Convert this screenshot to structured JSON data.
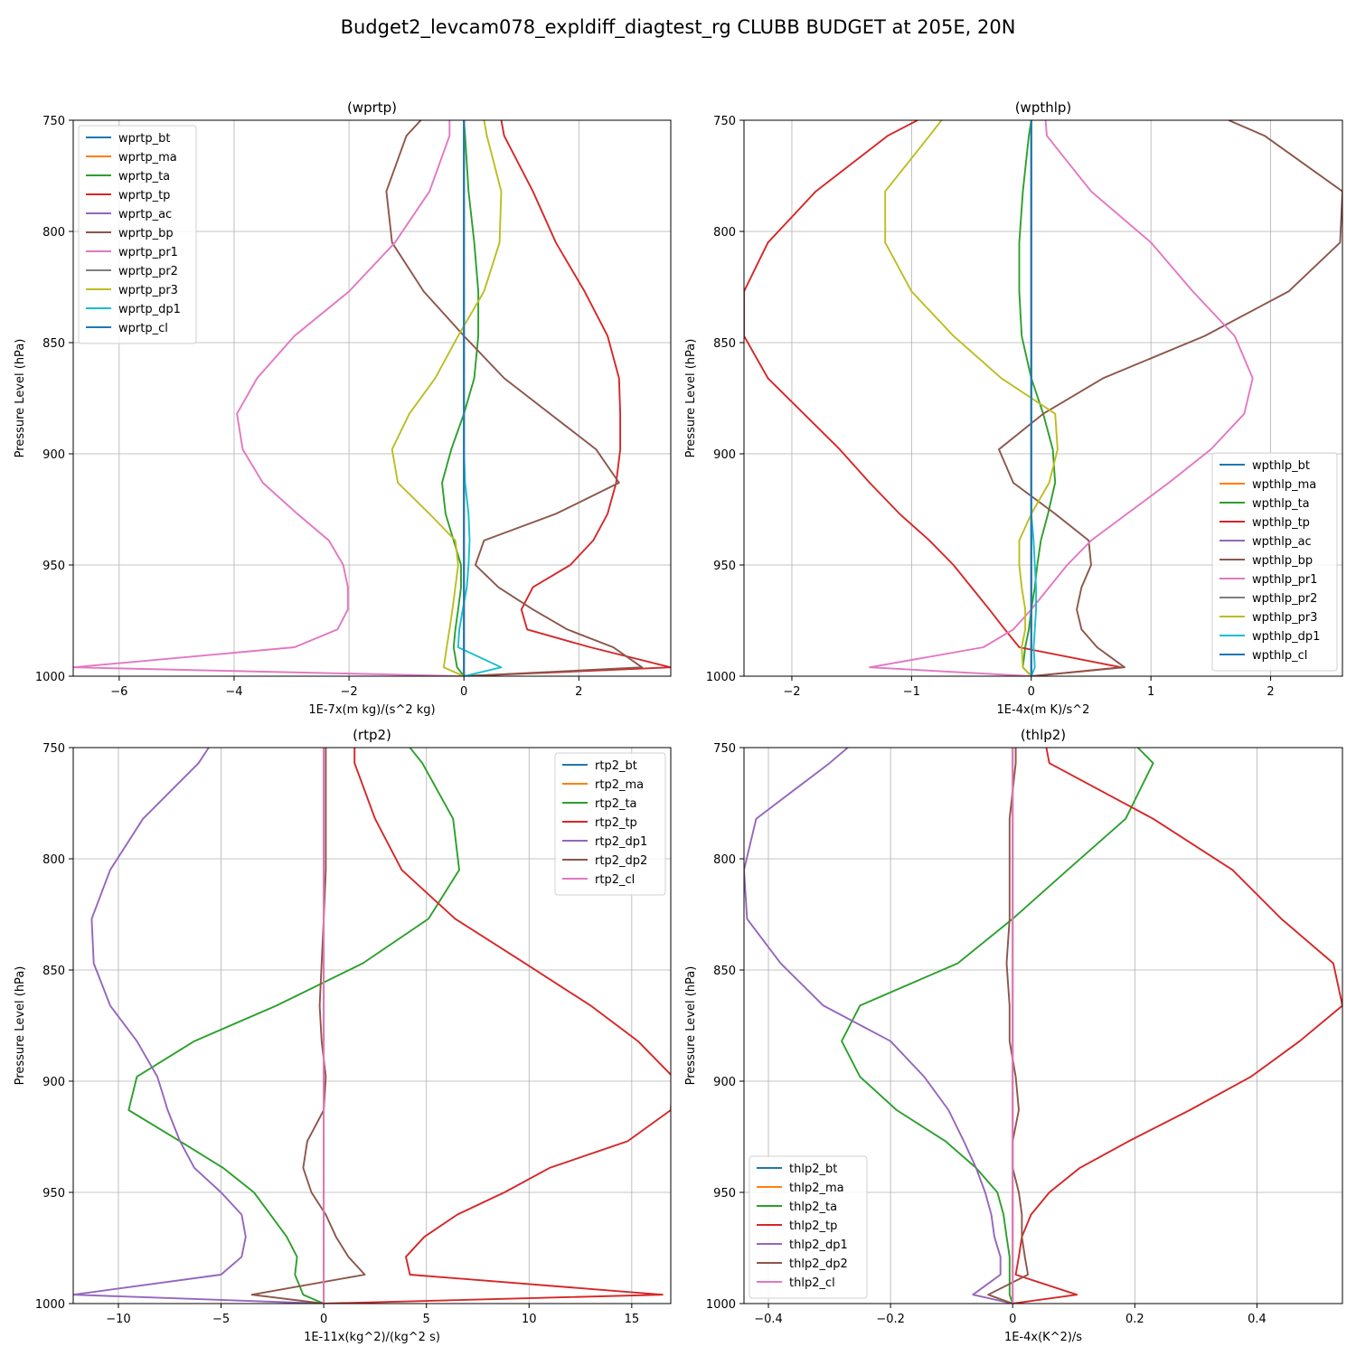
{
  "figure": {
    "suptitle": "Budget2_levcam078_expldiff_diagtest_rg CLUBB BUDGET at 205E, 20N"
  },
  "chart_data": [
    {
      "type": "line",
      "title": "(wprtp)",
      "xlabel": "1E-7x(m kg)/(s^2 kg)",
      "ylabel": "Pressure Level (hPa)",
      "xlim": [
        -6.8,
        3.6
      ],
      "ylim": [
        1000,
        750
      ],
      "xticks": [
        -6,
        -4,
        -2,
        0,
        2
      ],
      "yticks": [
        750,
        800,
        850,
        900,
        950,
        1000
      ],
      "legend_position": "top-left",
      "grid": true,
      "levels": [
        750,
        757,
        782,
        805,
        827,
        847,
        866,
        882,
        898,
        913,
        927,
        939,
        950,
        960,
        970,
        979,
        987,
        996,
        1000
      ],
      "series": [
        {
          "name": "wprtp_bt",
          "color": "#1f77b4",
          "values": [
            0,
            0,
            0,
            0,
            0,
            0,
            0,
            0,
            0,
            0,
            0,
            0,
            0,
            0,
            0,
            0,
            0,
            0,
            0
          ]
        },
        {
          "name": "wprtp_ma",
          "color": "#ff7f0e",
          "values": [
            0,
            0,
            0,
            0,
            0,
            0,
            0,
            0,
            0,
            0,
            0,
            0,
            0,
            0,
            0,
            0,
            0,
            0,
            0
          ]
        },
        {
          "name": "wprtp_ta",
          "color": "#2ca02c",
          "values": [
            0,
            0.02,
            0.08,
            0.18,
            0.25,
            0.25,
            0.18,
            0,
            -0.22,
            -0.38,
            -0.32,
            -0.18,
            -0.05,
            -0.05,
            -0.1,
            -0.15,
            -0.18,
            -0.12,
            0
          ]
        },
        {
          "name": "wprtp_tp",
          "color": "#d62728",
          "values": [
            0.65,
            0.7,
            1.2,
            1.6,
            2.1,
            2.5,
            2.7,
            2.72,
            2.72,
            2.65,
            2.5,
            2.25,
            1.85,
            1.2,
            1.0,
            1.1,
            2.2,
            3.6,
            0
          ]
        },
        {
          "name": "wprtp_ac",
          "color": "#9467bd",
          "values": [
            0,
            0,
            0,
            0,
            0,
            0,
            0,
            0,
            0,
            0,
            0,
            0,
            0,
            0,
            0,
            0,
            0,
            0,
            0
          ]
        },
        {
          "name": "wprtp_bp",
          "color": "#8c564b",
          "values": [
            -0.75,
            -1.0,
            -1.35,
            -1.25,
            -0.7,
            0,
            0.7,
            1.5,
            2.3,
            2.7,
            1.6,
            0.35,
            0.2,
            0.6,
            1.2,
            1.8,
            2.6,
            3.1,
            0
          ]
        },
        {
          "name": "wprtp_pr1",
          "color": "#e377c2",
          "values": [
            -0.25,
            -0.25,
            -0.6,
            -1.2,
            -2.0,
            -2.95,
            -3.6,
            -3.95,
            -3.85,
            -3.5,
            -2.9,
            -2.35,
            -2.1,
            -2.02,
            -2.02,
            -2.2,
            -2.95,
            -6.8,
            0
          ]
        },
        {
          "name": "wprtp_pr2",
          "color": "#7f7f7f",
          "values": [
            0,
            0,
            0,
            0,
            0,
            0,
            0,
            0,
            0,
            0,
            0,
            0,
            0,
            0,
            0,
            0,
            0,
            0,
            0
          ]
        },
        {
          "name": "wprtp_pr3",
          "color": "#bcbd22",
          "values": [
            0.35,
            0.4,
            0.65,
            0.62,
            0.35,
            -0.1,
            -0.5,
            -0.95,
            -1.25,
            -1.15,
            -0.6,
            -0.15,
            -0.1,
            -0.15,
            -0.2,
            -0.25,
            -0.3,
            -0.35,
            0
          ]
        },
        {
          "name": "wprtp_dp1",
          "color": "#17becf",
          "values": [
            0,
            0,
            0,
            0,
            0,
            0,
            0,
            0,
            0,
            0.02,
            0.08,
            0.1,
            0.08,
            0.05,
            -0.02,
            -0.08,
            -0.1,
            0.65,
            0
          ]
        },
        {
          "name": "wprtp_cl",
          "color": "#1f77b4",
          "values": [
            0,
            0,
            0,
            0,
            0,
            0,
            0,
            0,
            0,
            0,
            0,
            0,
            0,
            0,
            0,
            0,
            0,
            0,
            0
          ]
        }
      ]
    },
    {
      "type": "line",
      "title": "(wpthlp)",
      "xlabel": "1E-4x(m K)/s^2",
      "ylabel": "Pressure Level (hPa)",
      "xlim": [
        -2.4,
        2.6
      ],
      "ylim": [
        1000,
        750
      ],
      "xticks": [
        -2,
        -1,
        0,
        1,
        2
      ],
      "yticks": [
        750,
        800,
        850,
        900,
        950,
        1000
      ],
      "legend_position": "bottom-right",
      "grid": true,
      "levels": [
        750,
        757,
        782,
        805,
        827,
        847,
        866,
        882,
        898,
        913,
        927,
        939,
        950,
        960,
        970,
        979,
        987,
        996,
        1000
      ],
      "series": [
        {
          "name": "wpthlp_bt",
          "color": "#1f77b4",
          "values": [
            0,
            0,
            0,
            0,
            0,
            0,
            0,
            0,
            0,
            0,
            0,
            0,
            0,
            0,
            0,
            0,
            0,
            0,
            0
          ]
        },
        {
          "name": "wpthlp_ma",
          "color": "#ff7f0e",
          "values": [
            0,
            0,
            0,
            0,
            0,
            0,
            0,
            0,
            0,
            0,
            0,
            0,
            0,
            0,
            0,
            0,
            0,
            0,
            0
          ]
        },
        {
          "name": "wpthlp_ta",
          "color": "#2ca02c",
          "values": [
            0,
            -0.02,
            -0.07,
            -0.1,
            -0.1,
            -0.08,
            0,
            0.1,
            0.18,
            0.2,
            0.14,
            0.08,
            0.05,
            0.03,
            0,
            -0.02,
            -0.05,
            -0.07,
            0
          ]
        },
        {
          "name": "wpthlp_tp",
          "color": "#d62728",
          "values": [
            -0.95,
            -1.2,
            -1.8,
            -2.2,
            -2.4,
            -2.4,
            -2.2,
            -1.9,
            -1.6,
            -1.35,
            -1.1,
            -0.85,
            -0.65,
            -0.5,
            -0.35,
            -0.22,
            -0.1,
            0.75,
            0
          ]
        },
        {
          "name": "wpthlp_ac",
          "color": "#9467bd",
          "values": [
            0,
            0,
            0,
            0,
            0,
            0,
            0,
            0,
            0,
            0,
            0,
            0,
            0,
            0,
            0,
            0,
            0,
            0,
            0
          ]
        },
        {
          "name": "wpthlp_bp",
          "color": "#8c564b",
          "values": [
            1.65,
            1.95,
            2.6,
            2.58,
            2.15,
            1.45,
            0.6,
            0.1,
            -0.27,
            -0.15,
            0.2,
            0.48,
            0.5,
            0.42,
            0.38,
            0.42,
            0.55,
            0.78,
            0
          ]
        },
        {
          "name": "wpthlp_pr1",
          "color": "#e377c2",
          "values": [
            0.12,
            0.13,
            0.5,
            1.0,
            1.35,
            1.7,
            1.85,
            1.78,
            1.5,
            1.15,
            0.8,
            0.5,
            0.3,
            0.15,
            0,
            -0.15,
            -0.4,
            -1.35,
            0
          ]
        },
        {
          "name": "wpthlp_pr2",
          "color": "#7f7f7f",
          "values": [
            0,
            0,
            0,
            0,
            0,
            0,
            0,
            0,
            0,
            0,
            0,
            0,
            0,
            0,
            0,
            0,
            0,
            0,
            0
          ]
        },
        {
          "name": "wpthlp_pr3",
          "color": "#bcbd22",
          "values": [
            -0.75,
            -0.85,
            -1.22,
            -1.22,
            -1.0,
            -0.65,
            -0.25,
            0.2,
            0.22,
            0.15,
            0,
            -0.1,
            -0.1,
            -0.08,
            -0.05,
            -0.05,
            -0.08,
            -0.07,
            0
          ]
        },
        {
          "name": "wpthlp_dp1",
          "color": "#17becf",
          "values": [
            0,
            0,
            0,
            0,
            0,
            0,
            0,
            0,
            0,
            0,
            0,
            0.02,
            0.03,
            0.04,
            0.04,
            0.03,
            0.02,
            0.03,
            0
          ]
        },
        {
          "name": "wpthlp_cl",
          "color": "#1f77b4",
          "values": [
            0,
            0,
            0,
            0,
            0,
            0,
            0,
            0,
            0,
            0,
            0,
            0,
            0,
            0,
            0,
            0,
            0,
            0,
            0
          ]
        }
      ]
    },
    {
      "type": "line",
      "title": "(rtp2)",
      "xlabel": "1E-11x(kg^2)/(kg^2 s)",
      "ylabel": "Pressure Level (hPa)",
      "xlim": [
        -12.2,
        16.9
      ],
      "ylim": [
        1000,
        750
      ],
      "xticks": [
        -10,
        -5,
        0,
        5,
        10,
        15
      ],
      "yticks": [
        750,
        800,
        850,
        900,
        950,
        1000
      ],
      "legend_position": "top-right",
      "grid": true,
      "levels": [
        750,
        757,
        782,
        805,
        827,
        847,
        866,
        882,
        898,
        913,
        927,
        939,
        950,
        960,
        970,
        979,
        987,
        996,
        1000
      ],
      "series": [
        {
          "name": "rtp2_bt",
          "color": "#1f77b4",
          "values": [
            0,
            0,
            0,
            0,
            0,
            0,
            0,
            0,
            0,
            0,
            0,
            0,
            0,
            0,
            0,
            0,
            0,
            0,
            0
          ]
        },
        {
          "name": "rtp2_ma",
          "color": "#ff7f0e",
          "values": [
            0,
            0,
            0,
            0,
            0,
            0,
            0,
            0,
            0,
            0,
            0,
            0,
            0,
            0,
            0,
            0,
            0,
            0,
            0
          ]
        },
        {
          "name": "rtp2_ta",
          "color": "#2ca02c",
          "values": [
            4.2,
            4.8,
            6.3,
            6.6,
            5.1,
            1.9,
            -2.3,
            -6.3,
            -9.1,
            -9.5,
            -7.0,
            -4.9,
            -3.4,
            -2.6,
            -1.8,
            -1.3,
            -1.4,
            -1.0,
            0
          ]
        },
        {
          "name": "rtp2_tp",
          "color": "#d62728",
          "values": [
            1.5,
            1.5,
            2.5,
            3.8,
            6.4,
            9.8,
            13.0,
            15.3,
            17.0,
            16.9,
            14.8,
            11.0,
            8.8,
            6.5,
            4.9,
            4.0,
            4.2,
            16.5,
            0
          ]
        },
        {
          "name": "rtp2_dp1",
          "color": "#9467bd",
          "values": [
            -5.6,
            -6.1,
            -8.8,
            -10.4,
            -11.3,
            -11.2,
            -10.4,
            -9.1,
            -8.1,
            -7.6,
            -7.0,
            -6.3,
            -5.0,
            -4.0,
            -3.8,
            -4.0,
            -5.0,
            -12.2,
            0
          ]
        },
        {
          "name": "rtp2_dp2",
          "color": "#8c564b",
          "values": [
            0.1,
            0.1,
            0.1,
            0.1,
            0,
            -0.1,
            -0.2,
            -0.1,
            0.1,
            0,
            -0.8,
            -1.0,
            -0.6,
            0.1,
            0.6,
            1.2,
            2.0,
            -3.5,
            0
          ]
        },
        {
          "name": "rtp2_cl",
          "color": "#e377c2",
          "values": [
            0,
            0,
            0,
            0,
            0,
            0,
            0,
            0,
            0,
            0,
            0,
            0,
            0,
            0,
            0,
            0,
            0,
            0,
            0
          ]
        }
      ]
    },
    {
      "type": "line",
      "title": "(thlp2)",
      "xlabel": "1E-4x(K^2)/s",
      "ylabel": "Pressure Level (hPa)",
      "xlim": [
        -0.44,
        0.54
      ],
      "ylim": [
        1000,
        750
      ],
      "xticks": [
        -0.4,
        -0.2,
        0.0,
        0.2,
        0.4
      ],
      "yticks": [
        750,
        800,
        850,
        900,
        950,
        1000
      ],
      "legend_position": "bottom-left",
      "grid": true,
      "levels": [
        750,
        757,
        782,
        805,
        827,
        847,
        866,
        882,
        898,
        913,
        927,
        939,
        950,
        960,
        970,
        979,
        987,
        996,
        1000
      ],
      "series": [
        {
          "name": "thlp2_bt",
          "color": "#1f77b4",
          "values": [
            0,
            0,
            0,
            0,
            0,
            0,
            0,
            0,
            0,
            0,
            0,
            0,
            0,
            0,
            0,
            0,
            0,
            0,
            0
          ]
        },
        {
          "name": "thlp2_ma",
          "color": "#ff7f0e",
          "values": [
            0,
            0,
            0,
            0,
            0,
            0,
            0,
            0,
            0,
            0,
            0,
            0,
            0,
            0,
            0,
            0,
            0,
            0,
            0
          ]
        },
        {
          "name": "thlp2_ta",
          "color": "#2ca02c",
          "values": [
            0.205,
            0.23,
            0.185,
            0.09,
            0,
            -0.09,
            -0.25,
            -0.28,
            -0.25,
            -0.19,
            -0.11,
            -0.06,
            -0.025,
            -0.015,
            -0.01,
            -0.005,
            -0.005,
            -0.005,
            0
          ]
        },
        {
          "name": "thlp2_tp",
          "color": "#d62728",
          "values": [
            0.055,
            0.06,
            0.23,
            0.36,
            0.44,
            0.525,
            0.54,
            0.47,
            0.39,
            0.29,
            0.19,
            0.11,
            0.06,
            0.03,
            0.015,
            0.01,
            0.005,
            0.105,
            0
          ]
        },
        {
          "name": "thlp2_dp1",
          "color": "#9467bd",
          "values": [
            -0.27,
            -0.3,
            -0.42,
            -0.44,
            -0.435,
            -0.38,
            -0.31,
            -0.2,
            -0.145,
            -0.105,
            -0.08,
            -0.06,
            -0.045,
            -0.035,
            -0.03,
            -0.02,
            -0.02,
            -0.065,
            0
          ]
        },
        {
          "name": "thlp2_dp2",
          "color": "#8c564b",
          "values": [
            0.005,
            0.005,
            -0.005,
            -0.005,
            -0.005,
            -0.01,
            -0.005,
            -0.005,
            0.005,
            0.01,
            0,
            0,
            0.01,
            0.015,
            0.015,
            0.02,
            0.025,
            -0.04,
            0
          ]
        },
        {
          "name": "thlp2_cl",
          "color": "#e377c2",
          "values": [
            0,
            0,
            0,
            0,
            0,
            0,
            0,
            0,
            0,
            0,
            0,
            0,
            0,
            0,
            0,
            0,
            0,
            0,
            0
          ]
        }
      ]
    }
  ]
}
